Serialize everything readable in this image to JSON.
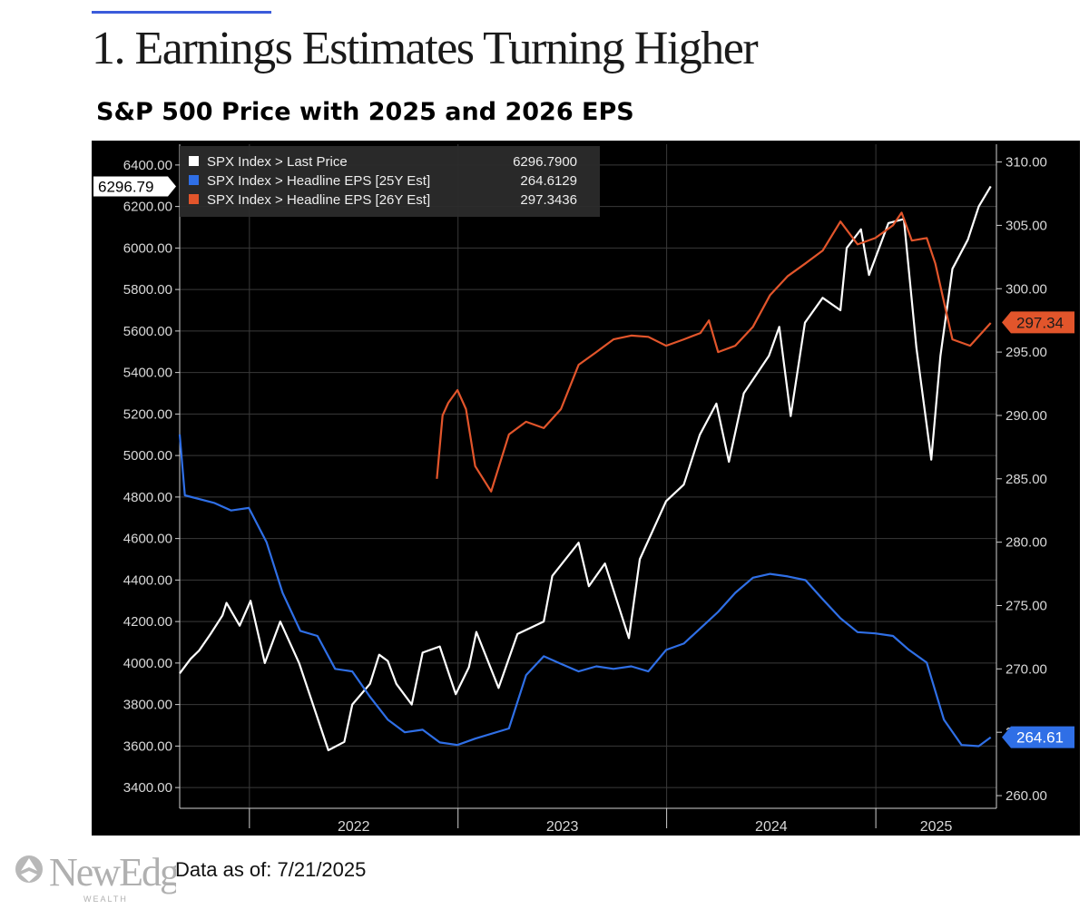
{
  "page": {
    "title": "1. Earnings Estimates Turning Higher",
    "data_as_of": "Data as of:  7/21/2025",
    "logo_text": "NewEdge",
    "logo_subtext": "WEALTH"
  },
  "colors": {
    "background": "#000000",
    "price": "#ffffff",
    "eps25": "#2f6fe6",
    "eps26": "#e2552b",
    "legend_bg": "#2b2b2b",
    "grid": "#3a3a3a"
  },
  "chart_data": {
    "type": "line",
    "title": "S&P 500 Price with 2025 and 2026 EPS",
    "x_range": [
      "2021-09-01",
      "2025-07-31"
    ],
    "x_ticks": [
      "2022",
      "2023",
      "2024",
      "2025"
    ],
    "y_left": {
      "min": 3300,
      "max": 6500,
      "ticks": [
        "3400.00",
        "3600.00",
        "3800.00",
        "4000.00",
        "4200.00",
        "4400.00",
        "4600.00",
        "4800.00",
        "5000.00",
        "5200.00",
        "5400.00",
        "5600.00",
        "5800.00",
        "6000.00",
        "6200.00",
        "6400.00"
      ]
    },
    "y_right": {
      "min": 259,
      "max": 311.4,
      "ticks": [
        "260.00",
        "265.00",
        "270.00",
        "275.00",
        "280.00",
        "285.00",
        "290.00",
        "295.00",
        "300.00",
        "305.00",
        "310.00"
      ]
    },
    "grid": true,
    "legend_position": "top-left",
    "series": [
      {
        "name": "SPX Index > Last Price",
        "legend_value": "6296.7900",
        "last_label": "6296.79",
        "axis": "left",
        "color": "#ffffff",
        "points": [
          [
            "2021-09-01",
            3950
          ],
          [
            "2021-09-20",
            4020
          ],
          [
            "2021-10-05",
            4060
          ],
          [
            "2021-10-25",
            4140
          ],
          [
            "2021-11-15",
            4230
          ],
          [
            "2021-11-22",
            4290
          ],
          [
            "2021-12-15",
            4180
          ],
          [
            "2022-01-03",
            4300
          ],
          [
            "2022-01-28",
            4000
          ],
          [
            "2022-02-24",
            4200
          ],
          [
            "2022-03-29",
            4000
          ],
          [
            "2022-05-19",
            3580
          ],
          [
            "2022-06-16",
            3620
          ],
          [
            "2022-06-30",
            3800
          ],
          [
            "2022-07-31",
            3900
          ],
          [
            "2022-08-16",
            4040
          ],
          [
            "2022-08-31",
            4010
          ],
          [
            "2022-09-15",
            3900
          ],
          [
            "2022-10-12",
            3800
          ],
          [
            "2022-10-31",
            4050
          ],
          [
            "2022-11-30",
            4080
          ],
          [
            "2022-12-28",
            3850
          ],
          [
            "2023-01-20",
            3980
          ],
          [
            "2023-02-02",
            4150
          ],
          [
            "2023-03-13",
            3880
          ],
          [
            "2023-04-15",
            4140
          ],
          [
            "2023-05-31",
            4200
          ],
          [
            "2023-06-15",
            4420
          ],
          [
            "2023-07-31",
            4580
          ],
          [
            "2023-08-18",
            4370
          ],
          [
            "2023-09-15",
            4480
          ],
          [
            "2023-10-27",
            4120
          ],
          [
            "2023-11-15",
            4500
          ],
          [
            "2023-12-31",
            4780
          ],
          [
            "2024-01-31",
            4860
          ],
          [
            "2024-02-28",
            5100
          ],
          [
            "2024-03-28",
            5250
          ],
          [
            "2024-04-19",
            4970
          ],
          [
            "2024-05-15",
            5300
          ],
          [
            "2024-06-28",
            5480
          ],
          [
            "2024-07-16",
            5620
          ],
          [
            "2024-08-05",
            5190
          ],
          [
            "2024-08-30",
            5640
          ],
          [
            "2024-09-30",
            5760
          ],
          [
            "2024-10-31",
            5700
          ],
          [
            "2024-11-11",
            6000
          ],
          [
            "2024-12-06",
            6090
          ],
          [
            "2024-12-20",
            5870
          ],
          [
            "2025-01-23",
            6120
          ],
          [
            "2025-02-19",
            6140
          ],
          [
            "2025-03-13",
            5520
          ],
          [
            "2025-04-08",
            4980
          ],
          [
            "2025-04-24",
            5480
          ],
          [
            "2025-05-15",
            5900
          ],
          [
            "2025-06-11",
            6040
          ],
          [
            "2025-06-30",
            6200
          ],
          [
            "2025-07-21",
            6297
          ]
        ]
      },
      {
        "name": "SPX Index > Headline EPS [25Y Est]",
        "legend_value": "264.6129",
        "last_label": "264.61",
        "axis": "right",
        "color": "#2f6fe6",
        "points": [
          [
            "2021-09-01",
            288.5
          ],
          [
            "2021-09-10",
            283.7
          ],
          [
            "2021-10-31",
            283.1
          ],
          [
            "2021-11-30",
            282.5
          ],
          [
            "2021-12-31",
            282.7
          ],
          [
            "2022-01-31",
            280.0
          ],
          [
            "2022-02-28",
            276.0
          ],
          [
            "2022-03-31",
            273.0
          ],
          [
            "2022-04-30",
            272.6
          ],
          [
            "2022-05-31",
            270.0
          ],
          [
            "2022-06-30",
            269.8
          ],
          [
            "2022-07-31",
            267.8
          ],
          [
            "2022-08-31",
            266.0
          ],
          [
            "2022-09-30",
            265.0
          ],
          [
            "2022-10-31",
            265.2
          ],
          [
            "2022-11-30",
            264.2
          ],
          [
            "2022-12-31",
            264.0
          ],
          [
            "2023-01-31",
            264.5
          ],
          [
            "2023-03-31",
            265.3
          ],
          [
            "2023-04-30",
            269.5
          ],
          [
            "2023-05-31",
            271.0
          ],
          [
            "2023-06-30",
            270.4
          ],
          [
            "2023-07-31",
            269.8
          ],
          [
            "2023-08-31",
            270.2
          ],
          [
            "2023-09-30",
            270.0
          ],
          [
            "2023-10-31",
            270.2
          ],
          [
            "2023-11-30",
            269.8
          ],
          [
            "2023-12-31",
            271.5
          ],
          [
            "2024-01-31",
            272.0
          ],
          [
            "2024-02-29",
            273.2
          ],
          [
            "2024-03-31",
            274.5
          ],
          [
            "2024-04-30",
            276.0
          ],
          [
            "2024-05-31",
            277.2
          ],
          [
            "2024-06-30",
            277.5
          ],
          [
            "2024-07-31",
            277.3
          ],
          [
            "2024-08-31",
            277.0
          ],
          [
            "2024-09-30",
            275.5
          ],
          [
            "2024-10-31",
            274.0
          ],
          [
            "2024-11-30",
            272.9
          ],
          [
            "2024-12-31",
            272.8
          ],
          [
            "2025-01-31",
            272.6
          ],
          [
            "2025-02-28",
            271.5
          ],
          [
            "2025-03-31",
            270.5
          ],
          [
            "2025-04-30",
            266.0
          ],
          [
            "2025-05-31",
            264.0
          ],
          [
            "2025-06-30",
            263.9
          ],
          [
            "2025-07-21",
            264.6
          ]
        ]
      },
      {
        "name": "SPX Index > Headline EPS [26Y Est]",
        "legend_value": "297.3436",
        "last_label": "297.34",
        "axis": "right",
        "color": "#e2552b",
        "points": [
          [
            "2022-11-25",
            285.0
          ],
          [
            "2022-12-05",
            290.0
          ],
          [
            "2022-12-15",
            291.0
          ],
          [
            "2022-12-31",
            292.0
          ],
          [
            "2023-01-15",
            290.5
          ],
          [
            "2023-01-31",
            286.0
          ],
          [
            "2023-02-28",
            284.0
          ],
          [
            "2023-03-31",
            288.5
          ],
          [
            "2023-04-30",
            289.5
          ],
          [
            "2023-05-31",
            289.0
          ],
          [
            "2023-06-30",
            290.5
          ],
          [
            "2023-07-31",
            294.0
          ],
          [
            "2023-08-31",
            295.0
          ],
          [
            "2023-09-30",
            296.0
          ],
          [
            "2023-10-31",
            296.3
          ],
          [
            "2023-11-30",
            296.2
          ],
          [
            "2023-12-31",
            295.5
          ],
          [
            "2024-01-31",
            296.0
          ],
          [
            "2024-02-29",
            296.5
          ],
          [
            "2024-03-15",
            297.5
          ],
          [
            "2024-03-31",
            295.0
          ],
          [
            "2024-04-30",
            295.5
          ],
          [
            "2024-05-31",
            297.0
          ],
          [
            "2024-06-30",
            299.5
          ],
          [
            "2024-07-31",
            301.0
          ],
          [
            "2024-08-31",
            302.0
          ],
          [
            "2024-09-30",
            303.0
          ],
          [
            "2024-10-31",
            305.3
          ],
          [
            "2024-11-30",
            303.5
          ],
          [
            "2024-12-31",
            304.0
          ],
          [
            "2025-01-31",
            305.0
          ],
          [
            "2025-02-15",
            306.0
          ],
          [
            "2025-03-05",
            303.8
          ],
          [
            "2025-03-31",
            304.0
          ],
          [
            "2025-04-15",
            302.0
          ],
          [
            "2025-05-15",
            296.0
          ],
          [
            "2025-06-15",
            295.5
          ],
          [
            "2025-07-21",
            297.3
          ]
        ]
      }
    ]
  }
}
